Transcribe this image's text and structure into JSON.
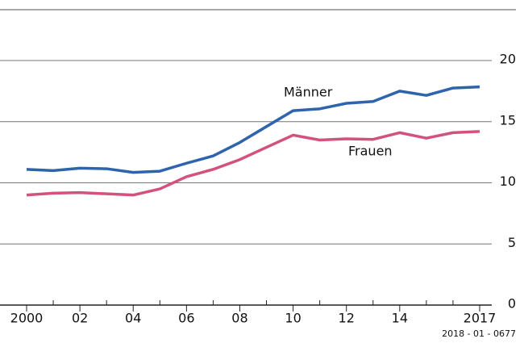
{
  "chart_data": {
    "type": "line",
    "x": [
      2000,
      2001,
      2002,
      2003,
      2004,
      2005,
      2006,
      2007,
      2008,
      2009,
      2010,
      2011,
      2012,
      2013,
      2014,
      2015,
      2016,
      2017
    ],
    "series": [
      {
        "name": "Männer",
        "color": "#2e63ad",
        "values": [
          11.1,
          11.0,
          11.2,
          11.15,
          10.85,
          10.95,
          11.6,
          12.2,
          13.3,
          14.6,
          15.9,
          16.05,
          16.5,
          16.65,
          17.5,
          17.15,
          17.75,
          17.85
        ]
      },
      {
        "name": "Frauen",
        "color": "#d2527c",
        "values": [
          9.0,
          9.15,
          9.2,
          9.1,
          9.0,
          9.5,
          10.5,
          11.1,
          11.9,
          12.9,
          13.9,
          13.5,
          13.6,
          13.55,
          14.1,
          13.65,
          14.1,
          14.2
        ]
      }
    ],
    "xlim": [
      2000,
      2017
    ],
    "xticks": [
      2000,
      {
        "value": 2002,
        "label": "02"
      },
      {
        "value": 2004,
        "label": "04"
      },
      {
        "value": 2006,
        "label": "06"
      },
      {
        "value": 2008,
        "label": "08"
      },
      {
        "value": 2010,
        "label": "10"
      },
      {
        "value": 2012,
        "label": "12"
      },
      {
        "value": 2014,
        "label": "14"
      },
      2017
    ],
    "xminor_ticks": [
      2001,
      2003,
      2005,
      2007,
      2009,
      2011,
      2013,
      2015,
      2016
    ],
    "ylim": [
      0,
      20
    ],
    "yticks": [
      0,
      5,
      10,
      15,
      20
    ],
    "grid": true,
    "source": "2018 - 01 - 0677"
  }
}
